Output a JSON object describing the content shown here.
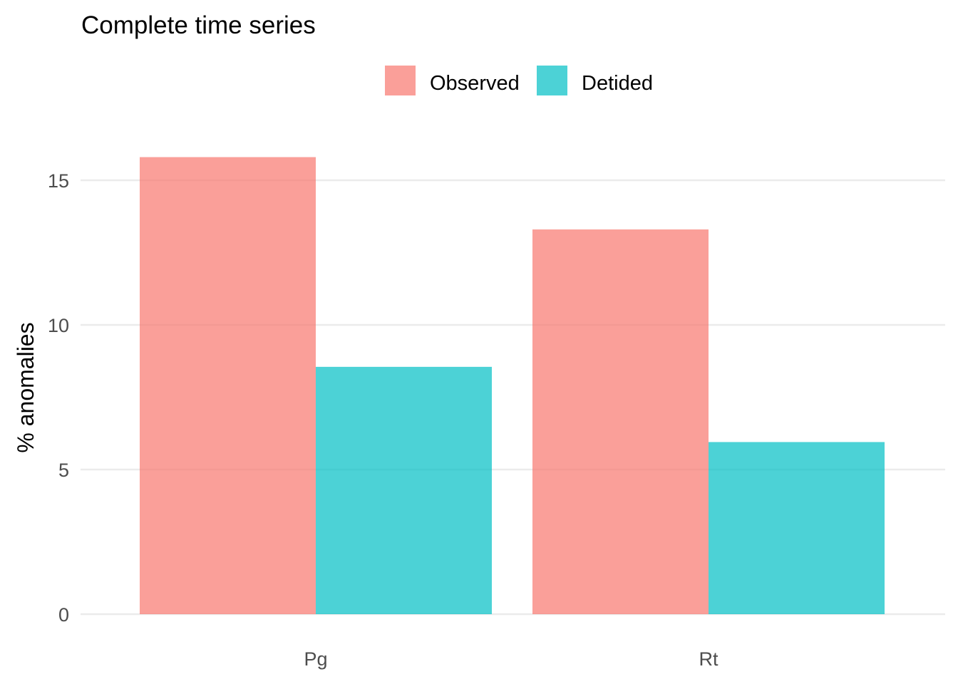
{
  "chart_data": {
    "type": "bar",
    "title": "Complete time series",
    "xlabel": "",
    "ylabel": "% anomalies",
    "categories": [
      "Pg",
      "Rt"
    ],
    "series": [
      {
        "name": "Observed",
        "color": "#F8766D",
        "values": [
          15.8,
          13.3
        ]
      },
      {
        "name": "Detided",
        "color": "#00BFC4",
        "values": [
          8.55,
          5.95
        ]
      }
    ],
    "ylim": [
      0,
      17
    ],
    "yticks": [
      0,
      5,
      10,
      15
    ],
    "bar_opacity": 0.7,
    "grid": true,
    "legend_position": "top"
  }
}
